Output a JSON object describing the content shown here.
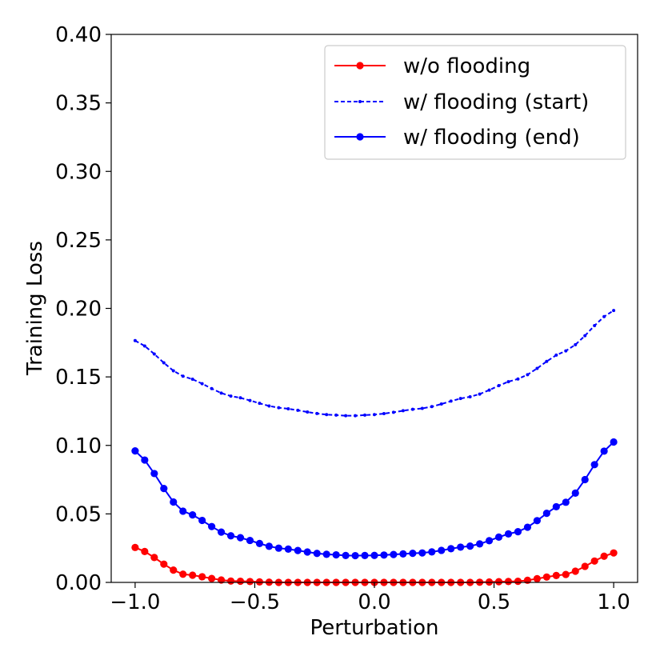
{
  "chart_data": {
    "type": "line",
    "title": "",
    "xlabel": "Perturbation",
    "ylabel": "Training Loss",
    "xlim": [
      -1.1,
      1.1
    ],
    "ylim": [
      0.0,
      0.4
    ],
    "xticks": [
      -1.0,
      -0.5,
      0.0,
      0.5,
      1.0
    ],
    "xtick_labels": [
      "−1.0",
      "−0.5",
      "0.0",
      "0.5",
      "1.0"
    ],
    "yticks": [
      0.0,
      0.05,
      0.1,
      0.15,
      0.2,
      0.25,
      0.3,
      0.35,
      0.4
    ],
    "ytick_labels": [
      "0.00",
      "0.05",
      "0.10",
      "0.15",
      "0.20",
      "0.25",
      "0.30",
      "0.35",
      "0.40"
    ],
    "grid": false,
    "legend_position": "top-right",
    "n_points": 51,
    "series": [
      {
        "name": "w/o flooding",
        "color": "#ff0000",
        "linestyle": "solid",
        "marker": "large-dot",
        "points": [
          [
            -1.0,
            0.0255
          ],
          [
            -0.8,
            0.006
          ],
          [
            -0.6,
            0.001
          ],
          [
            -0.4,
            0.0
          ],
          [
            0.0,
            0.0
          ],
          [
            0.4,
            0.0
          ],
          [
            0.6,
            0.0008
          ],
          [
            0.8,
            0.0058
          ],
          [
            1.0,
            0.0215
          ]
        ]
      },
      {
        "name": "w/ flooding (start)",
        "color": "#0000ff",
        "linestyle": "dashed",
        "marker": "small-dot",
        "points": [
          [
            -1.0,
            0.1765
          ],
          [
            -0.8,
            0.1505
          ],
          [
            -0.6,
            0.136
          ],
          [
            -0.4,
            0.1275
          ],
          [
            -0.2,
            0.1225
          ],
          [
            -0.1,
            0.1215
          ],
          [
            0.0,
            0.1225
          ],
          [
            0.2,
            0.127
          ],
          [
            0.4,
            0.1355
          ],
          [
            0.6,
            0.1485
          ],
          [
            0.8,
            0.169
          ],
          [
            1.0,
            0.1985
          ]
        ]
      },
      {
        "name": "w/ flooding (end)",
        "color": "#0000ff",
        "linestyle": "solid",
        "marker": "large-dot",
        "points": [
          [
            -1.0,
            0.096
          ],
          [
            -0.8,
            0.052
          ],
          [
            -0.6,
            0.034
          ],
          [
            -0.4,
            0.025
          ],
          [
            -0.2,
            0.0205
          ],
          [
            -0.1,
            0.0195
          ],
          [
            0.0,
            0.0197
          ],
          [
            0.2,
            0.0215
          ],
          [
            0.4,
            0.0265
          ],
          [
            0.6,
            0.037
          ],
          [
            0.8,
            0.0585
          ],
          [
            1.0,
            0.1025
          ]
        ]
      }
    ]
  }
}
